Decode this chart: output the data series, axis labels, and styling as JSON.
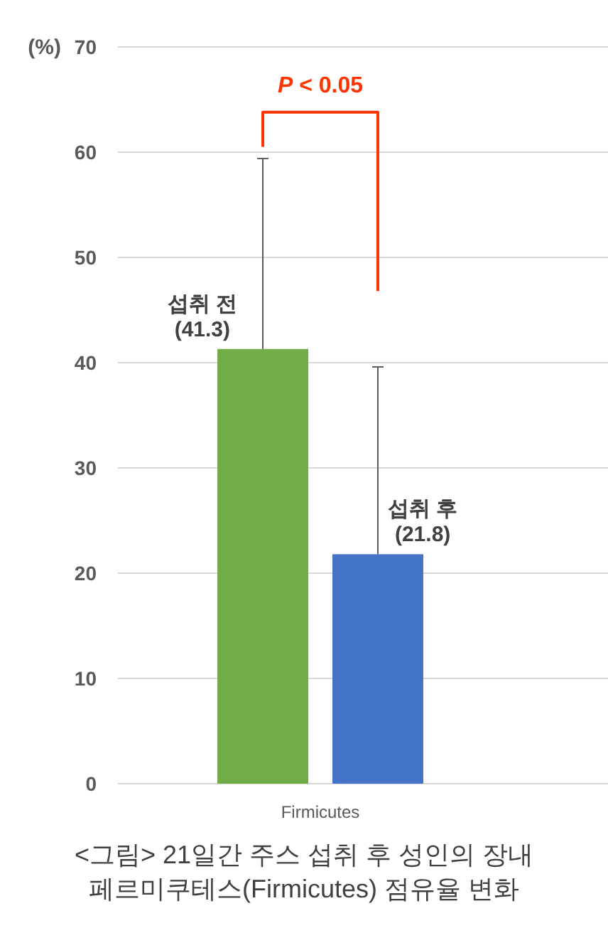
{
  "chart_data": {
    "type": "bar",
    "ylabel": "(%)",
    "categories": [
      "Firmicutes"
    ],
    "series": [
      {
        "name": "섭취 전",
        "color": "#70ad47",
        "values": [
          41.3
        ],
        "errors": [
          [
            41.3,
            59.4
          ]
        ],
        "value_labels": [
          "(41.3)"
        ]
      },
      {
        "name": "섭취 후",
        "color": "#4472c4",
        "values": [
          21.8
        ],
        "errors": [
          [
            21.8,
            39.6
          ]
        ],
        "value_labels": [
          "(21.8)"
        ]
      }
    ],
    "ylim": [
      0,
      70
    ],
    "yticks": [
      0,
      10,
      20,
      30,
      40,
      50,
      60,
      70
    ],
    "grid": "y",
    "annotations": [
      "P < 0.05",
      "<그림> 21일간 주스 섭취 후 성인의 장내 페르미쿠테스(Firmicutes) 점유율 변화"
    ]
  }
}
